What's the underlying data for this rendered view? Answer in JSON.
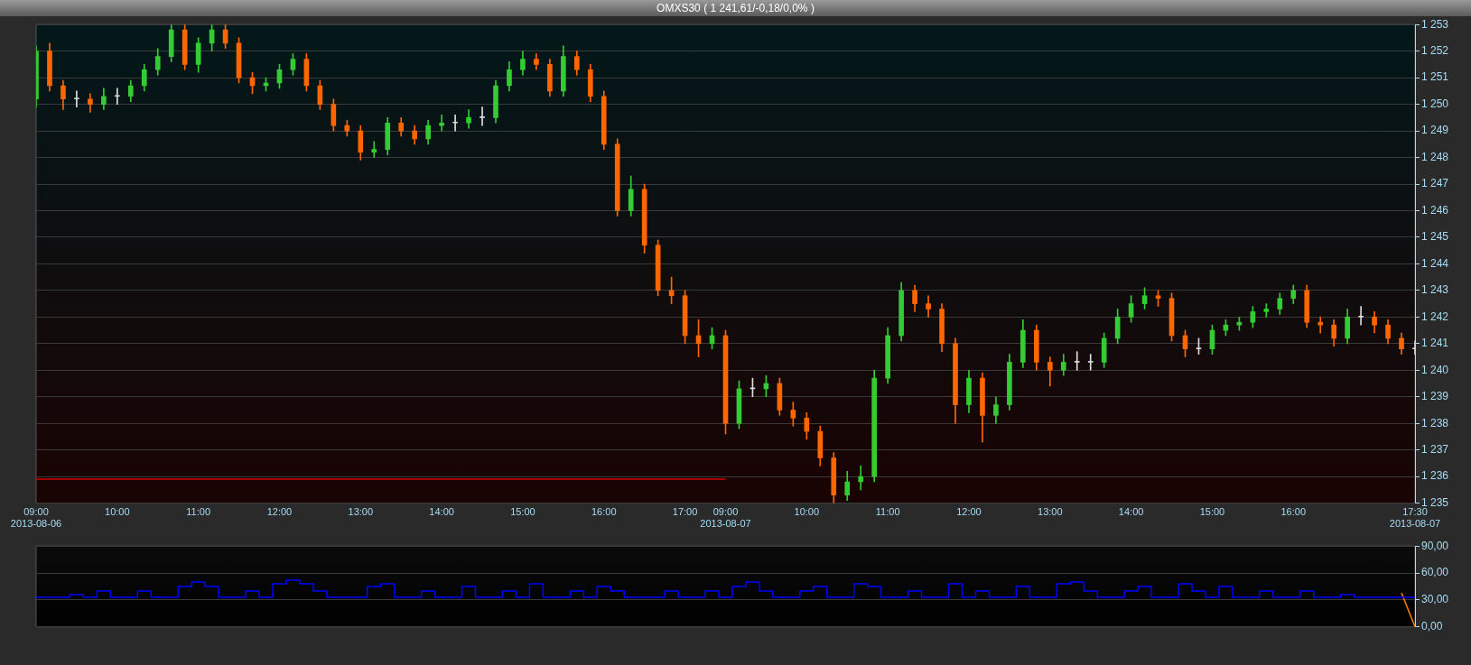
{
  "chart_data": [
    {
      "type": "candlestick",
      "title": "OMXS30 ( 1 241,61/-0,18/0,0% )",
      "categories": [
        "09:00\n2013-08-06",
        null,
        null,
        null,
        null,
        null,
        "10:00",
        null,
        null,
        null,
        null,
        null,
        "11:00",
        null,
        null,
        null,
        null,
        null,
        "12:00",
        null,
        null,
        null,
        null,
        null,
        "13:00",
        null,
        null,
        null,
        null,
        null,
        "14:00",
        null,
        null,
        null,
        null,
        null,
        "15:00",
        null,
        null,
        null,
        null,
        null,
        "16:00",
        null,
        null,
        null,
        null,
        null,
        "17:00",
        null,
        null,
        "09:00\n2013-08-07",
        null,
        null,
        null,
        null,
        null,
        "10:00",
        null,
        null,
        null,
        null,
        null,
        "11:00",
        null,
        null,
        null,
        null,
        null,
        "12:00",
        null,
        null,
        null,
        null,
        null,
        "13:00",
        null,
        null,
        null,
        null,
        null,
        "14:00",
        null,
        null,
        null,
        null,
        null,
        "15:00",
        null,
        null,
        null,
        null,
        null,
        "16:00",
        null,
        null,
        null,
        null,
        null,
        null,
        null,
        null,
        "17:30\n2013-08-07"
      ],
      "ohlc": [
        [
          1250.2,
          1252.2,
          1249.9,
          1252.0
        ],
        [
          1252.0,
          1252.3,
          1250.5,
          1250.7
        ],
        [
          1250.7,
          1250.9,
          1249.8,
          1250.2
        ],
        [
          1250.2,
          1250.5,
          1249.9,
          1250.2
        ],
        [
          1250.2,
          1250.4,
          1249.7,
          1250.0
        ],
        [
          1250.0,
          1250.6,
          1249.8,
          1250.3
        ],
        [
          1250.3,
          1250.6,
          1250.0,
          1250.3
        ],
        [
          1250.3,
          1250.9,
          1250.1,
          1250.7
        ],
        [
          1250.7,
          1251.5,
          1250.5,
          1251.3
        ],
        [
          1251.3,
          1252.1,
          1251.1,
          1251.8
        ],
        [
          1251.8,
          1253.0,
          1251.6,
          1252.8
        ],
        [
          1252.8,
          1253.0,
          1251.3,
          1251.5
        ],
        [
          1251.5,
          1252.5,
          1251.2,
          1252.3
        ],
        [
          1252.3,
          1253.0,
          1252.0,
          1252.8
        ],
        [
          1252.8,
          1253.0,
          1252.1,
          1252.3
        ],
        [
          1252.3,
          1252.5,
          1250.8,
          1251.0
        ],
        [
          1251.0,
          1251.2,
          1250.4,
          1250.7
        ],
        [
          1250.7,
          1251.0,
          1250.5,
          1250.8
        ],
        [
          1250.8,
          1251.5,
          1250.6,
          1251.3
        ],
        [
          1251.3,
          1251.9,
          1251.1,
          1251.7
        ],
        [
          1251.7,
          1251.9,
          1250.5,
          1250.7
        ],
        [
          1250.7,
          1250.9,
          1249.8,
          1250.0
        ],
        [
          1250.0,
          1250.2,
          1249.0,
          1249.2
        ],
        [
          1249.2,
          1249.4,
          1248.8,
          1249.0
        ],
        [
          1249.0,
          1249.2,
          1247.9,
          1248.2
        ],
        [
          1248.2,
          1248.6,
          1248.0,
          1248.3
        ],
        [
          1248.3,
          1249.5,
          1248.1,
          1249.3
        ],
        [
          1249.3,
          1249.5,
          1248.8,
          1249.0
        ],
        [
          1249.0,
          1249.2,
          1248.5,
          1248.7
        ],
        [
          1248.7,
          1249.4,
          1248.5,
          1249.2
        ],
        [
          1249.2,
          1249.6,
          1249.0,
          1249.3
        ],
        [
          1249.3,
          1249.6,
          1249.0,
          1249.3
        ],
        [
          1249.3,
          1249.8,
          1249.1,
          1249.5
        ],
        [
          1249.5,
          1249.9,
          1249.2,
          1249.5
        ],
        [
          1249.5,
          1250.9,
          1249.3,
          1250.7
        ],
        [
          1250.7,
          1251.6,
          1250.5,
          1251.3
        ],
        [
          1251.3,
          1252.0,
          1251.1,
          1251.7
        ],
        [
          1251.7,
          1251.9,
          1251.3,
          1251.5
        ],
        [
          1251.5,
          1251.7,
          1250.3,
          1250.5
        ],
        [
          1250.5,
          1252.2,
          1250.3,
          1251.8
        ],
        [
          1251.8,
          1252.0,
          1251.1,
          1251.3
        ],
        [
          1251.3,
          1251.5,
          1250.1,
          1250.3
        ],
        [
          1250.3,
          1250.5,
          1248.3,
          1248.5
        ],
        [
          1248.5,
          1248.7,
          1245.8,
          1246.0
        ],
        [
          1246.0,
          1247.3,
          1245.8,
          1246.8
        ],
        [
          1246.8,
          1247.0,
          1244.4,
          1244.7
        ],
        [
          1244.7,
          1244.9,
          1242.8,
          1243.0
        ],
        [
          1243.0,
          1243.5,
          1242.5,
          1242.8
        ],
        [
          1242.8,
          1243.0,
          1241.0,
          1241.3
        ],
        [
          1241.3,
          1241.9,
          1240.5,
          1241.0
        ],
        [
          1241.0,
          1241.6,
          1240.8,
          1241.3
        ],
        [
          1241.3,
          1241.5,
          1237.6,
          1238.0
        ],
        [
          1238.0,
          1239.6,
          1237.8,
          1239.3
        ],
        [
          1239.3,
          1239.7,
          1239.0,
          1239.3
        ],
        [
          1239.3,
          1239.8,
          1239.0,
          1239.5
        ],
        [
          1239.5,
          1239.7,
          1238.3,
          1238.5
        ],
        [
          1238.5,
          1238.8,
          1237.9,
          1238.2
        ],
        [
          1238.2,
          1238.4,
          1237.4,
          1237.7
        ],
        [
          1237.7,
          1237.9,
          1236.4,
          1236.7
        ],
        [
          1236.7,
          1236.9,
          1235.0,
          1235.3
        ],
        [
          1235.3,
          1236.2,
          1235.1,
          1235.8
        ],
        [
          1235.8,
          1236.4,
          1235.5,
          1236.0
        ],
        [
          1236.0,
          1240.0,
          1235.8,
          1239.7
        ],
        [
          1239.7,
          1241.6,
          1239.5,
          1241.3
        ],
        [
          1241.3,
          1243.3,
          1241.1,
          1243.0
        ],
        [
          1243.0,
          1243.2,
          1242.2,
          1242.5
        ],
        [
          1242.5,
          1242.8,
          1242.0,
          1242.3
        ],
        [
          1242.3,
          1242.5,
          1240.7,
          1241.0
        ],
        [
          1241.0,
          1241.2,
          1238.0,
          1238.7
        ],
        [
          1238.7,
          1240.0,
          1238.4,
          1239.7
        ],
        [
          1239.7,
          1239.9,
          1237.3,
          1238.3
        ],
        [
          1238.3,
          1239.0,
          1238.0,
          1238.7
        ],
        [
          1238.7,
          1240.6,
          1238.5,
          1240.3
        ],
        [
          1240.3,
          1241.9,
          1240.1,
          1241.5
        ],
        [
          1241.5,
          1241.7,
          1240.0,
          1240.3
        ],
        [
          1240.3,
          1240.5,
          1239.4,
          1240.0
        ],
        [
          1240.0,
          1240.6,
          1239.8,
          1240.3
        ],
        [
          1240.3,
          1240.7,
          1240.0,
          1240.3
        ],
        [
          1240.3,
          1240.6,
          1240.0,
          1240.3
        ],
        [
          1240.3,
          1241.4,
          1240.1,
          1241.2
        ],
        [
          1241.2,
          1242.3,
          1241.0,
          1242.0
        ],
        [
          1242.0,
          1242.8,
          1241.8,
          1242.5
        ],
        [
          1242.5,
          1243.1,
          1242.3,
          1242.8
        ],
        [
          1242.8,
          1243.0,
          1242.4,
          1242.7
        ],
        [
          1242.7,
          1242.9,
          1241.1,
          1241.3
        ],
        [
          1241.3,
          1241.5,
          1240.5,
          1240.8
        ],
        [
          1240.8,
          1241.2,
          1240.6,
          1240.8
        ],
        [
          1240.8,
          1241.7,
          1240.6,
          1241.5
        ],
        [
          1241.5,
          1241.9,
          1241.3,
          1241.7
        ],
        [
          1241.7,
          1242.0,
          1241.5,
          1241.8
        ],
        [
          1241.8,
          1242.4,
          1241.6,
          1242.2
        ],
        [
          1242.2,
          1242.5,
          1242.0,
          1242.3
        ],
        [
          1242.3,
          1242.9,
          1242.1,
          1242.7
        ],
        [
          1242.7,
          1243.2,
          1242.5,
          1243.0
        ],
        [
          1243.0,
          1243.2,
          1241.6,
          1241.8
        ],
        [
          1241.8,
          1242.0,
          1241.4,
          1241.7
        ],
        [
          1241.7,
          1241.9,
          1240.9,
          1241.2
        ],
        [
          1241.2,
          1242.3,
          1241.0,
          1242.0
        ],
        [
          1242.0,
          1242.4,
          1241.7,
          1242.0
        ],
        [
          1242.0,
          1242.2,
          1241.4,
          1241.7
        ],
        [
          1241.7,
          1241.9,
          1241.0,
          1241.2
        ],
        [
          1241.2,
          1241.4,
          1240.6,
          1240.8
        ],
        [
          1240.8,
          1241.1,
          1240.6,
          1240.8
        ]
      ],
      "colors": [
        "#33cc33",
        "#ff6600",
        "#ff6600",
        "#dddddd",
        "#ff6600",
        "#33cc33",
        "#dddddd",
        "#33cc33",
        "#33cc33",
        "#33cc33",
        "#33cc33",
        "#ff6600",
        "#33cc33",
        "#33cc33",
        "#ff6600",
        "#ff6600",
        "#ff6600",
        "#33cc33",
        "#33cc33",
        "#33cc33",
        "#ff6600",
        "#ff6600",
        "#ff6600",
        "#ff6600",
        "#ff6600",
        "#33cc33",
        "#33cc33",
        "#ff6600",
        "#ff6600",
        "#33cc33",
        "#33cc33",
        "#dddddd",
        "#33cc33",
        "#dddddd",
        "#33cc33",
        "#33cc33",
        "#33cc33",
        "#ff6600",
        "#ff6600",
        "#33cc33",
        "#ff6600",
        "#ff6600",
        "#ff6600",
        "#ff6600",
        "#33cc33",
        "#ff6600",
        "#ff6600",
        "#ff6600",
        "#ff6600",
        "#ff6600",
        "#33cc33",
        "#ff6600",
        "#33cc33",
        "#dddddd",
        "#33cc33",
        "#ff6600",
        "#ff6600",
        "#ff6600",
        "#ff6600",
        "#ff6600",
        "#33cc33",
        "#33cc33",
        "#33cc33",
        "#33cc33",
        "#33cc33",
        "#ff6600",
        "#ff6600",
        "#ff6600",
        "#ff6600",
        "#33cc33",
        "#ff6600",
        "#33cc33",
        "#33cc33",
        "#33cc33",
        "#ff6600",
        "#ff6600",
        "#33cc33",
        "#dddddd",
        "#dddddd",
        "#33cc33",
        "#33cc33",
        "#33cc33",
        "#33cc33",
        "#ff6600",
        "#ff6600",
        "#ff6600",
        "#dddddd",
        "#33cc33",
        "#33cc33",
        "#33cc33",
        "#33cc33",
        "#33cc33",
        "#33cc33",
        "#33cc33",
        "#ff6600",
        "#ff6600",
        "#ff6600",
        "#33cc33",
        "#dddddd",
        "#ff6600",
        "#ff6600",
        "#ff6600",
        "#dddddd"
      ],
      "series": [
        {
          "type": "line",
          "color": "#cc0000",
          "values": [
            1235.9,
            1235.9,
            1235.9,
            1235.9,
            1235.9,
            1235.9,
            1235.9,
            1235.9,
            1235.9,
            1235.9,
            1235.9,
            1235.9,
            1235.9,
            1235.9,
            1235.9,
            1235.9,
            1235.9,
            1235.9,
            1235.9,
            1235.9,
            1235.9,
            1235.9,
            1235.9,
            1235.9,
            1235.9,
            1235.9,
            1235.9,
            1235.9,
            1235.9,
            1235.9,
            1235.9,
            1235.9,
            1235.9,
            1235.9,
            1235.9,
            1235.9,
            1235.9,
            1235.9,
            1235.9,
            1235.9,
            1235.9,
            1235.9,
            1235.9,
            1235.9,
            1235.9,
            1235.9,
            1235.9,
            1235.9,
            1235.9,
            1235.9,
            1235.9,
            1235.9,
            null,
            null,
            null,
            null,
            null,
            null,
            null,
            null,
            null,
            null,
            null,
            null,
            null,
            null,
            null,
            null,
            null,
            null,
            null,
            null,
            null,
            null,
            null,
            null,
            null,
            null,
            null,
            null,
            null,
            null,
            null,
            null,
            null,
            null,
            null,
            null,
            null,
            null,
            null,
            null,
            null,
            null,
            null,
            null,
            null,
            null,
            null,
            null,
            null,
            null,
            null
          ]
        }
      ],
      "ylim": [
        1235,
        1253
      ],
      "yticks": [
        {
          "value": 1235,
          "label": "1 235"
        },
        {
          "value": 1236,
          "label": "1 236"
        },
        {
          "value": 1237,
          "label": "1 237"
        },
        {
          "value": 1238,
          "label": "1 238"
        },
        {
          "value": 1239,
          "label": "1 239"
        },
        {
          "value": 1240,
          "label": "1 240"
        },
        {
          "value": 1241,
          "label": "1 241"
        },
        {
          "value": 1242,
          "label": "1 242"
        },
        {
          "value": 1243,
          "label": "1 243"
        },
        {
          "value": 1244,
          "label": "1 244"
        },
        {
          "value": 1245,
          "label": "1 245"
        },
        {
          "value": 1246,
          "label": "1 246"
        },
        {
          "value": 1247,
          "label": "1 247"
        },
        {
          "value": 1248,
          "label": "1 248"
        },
        {
          "value": 1249,
          "label": "1 249"
        },
        {
          "value": 1250,
          "label": "1 250"
        },
        {
          "value": 1251,
          "label": "1 251"
        },
        {
          "value": 1252,
          "label": "1 252"
        },
        {
          "value": 1253,
          "label": "1 253"
        }
      ],
      "grid": "y"
    },
    {
      "type": "step",
      "categories": [
        null,
        null,
        null,
        null,
        null,
        null,
        null,
        null,
        null,
        null,
        null,
        null,
        null,
        null,
        null,
        null,
        null,
        null,
        null,
        null,
        null,
        null,
        null,
        null,
        null,
        null,
        null,
        null,
        null,
        null,
        null,
        null,
        null,
        null,
        null,
        null,
        null,
        null,
        null,
        null,
        null,
        null,
        null,
        null,
        null,
        null,
        null,
        null,
        null,
        null,
        null,
        null,
        null,
        null,
        null,
        null,
        null,
        null,
        null,
        null,
        null,
        null,
        null,
        null,
        null,
        null,
        null,
        null,
        null,
        null,
        null,
        null,
        null,
        null,
        null,
        null,
        null,
        null,
        null,
        null,
        null,
        null,
        null,
        null,
        null,
        null,
        null,
        null,
        null,
        null,
        null,
        null,
        null,
        null,
        null,
        null,
        null,
        null,
        null,
        null,
        null,
        null,
        null
      ],
      "series": [
        {
          "color": "#0000ff",
          "values": [
            33,
            33,
            33,
            36,
            33,
            40,
            33,
            33,
            40,
            33,
            33,
            45,
            50,
            45,
            33,
            33,
            40,
            33,
            48,
            52,
            48,
            40,
            33,
            33,
            33,
            45,
            48,
            33,
            33,
            40,
            33,
            33,
            45,
            33,
            33,
            40,
            33,
            48,
            33,
            33,
            40,
            33,
            45,
            40,
            33,
            33,
            33,
            40,
            33,
            33,
            40,
            33,
            45,
            50,
            40,
            33,
            33,
            40,
            45,
            33,
            33,
            48,
            45,
            33,
            33,
            40,
            33,
            33,
            48,
            33,
            40,
            33,
            33,
            45,
            33,
            33,
            48,
            50,
            40,
            33,
            33,
            40,
            45,
            33,
            33,
            48,
            40,
            33,
            45,
            33,
            33,
            40,
            33,
            33,
            40,
            33,
            33,
            36,
            33,
            33,
            33,
            33,
            33
          ]
        },
        {
          "type": "line",
          "color": "#ff8000",
          "values": [
            null,
            null,
            null,
            null,
            null,
            null,
            null,
            null,
            null,
            null,
            null,
            null,
            null,
            null,
            null,
            null,
            null,
            null,
            null,
            null,
            null,
            null,
            null,
            null,
            null,
            null,
            null,
            null,
            null,
            null,
            null,
            null,
            null,
            null,
            null,
            null,
            null,
            null,
            null,
            null,
            null,
            null,
            null,
            null,
            null,
            null,
            null,
            null,
            null,
            null,
            null,
            null,
            null,
            null,
            null,
            null,
            null,
            null,
            null,
            null,
            null,
            null,
            null,
            null,
            null,
            null,
            null,
            null,
            null,
            null,
            null,
            null,
            null,
            null,
            null,
            null,
            null,
            null,
            null,
            null,
            null,
            null,
            null,
            null,
            null,
            null,
            null,
            null,
            null,
            null,
            null,
            null,
            null,
            null,
            null,
            null,
            null,
            null,
            null,
            null,
            null,
            38,
            0
          ]
        }
      ],
      "ylim": [
        0,
        90
      ],
      "yticks": [
        {
          "value": 0,
          "label": "0,00"
        },
        {
          "value": 30,
          "label": "30,00"
        },
        {
          "value": 60,
          "label": "60,00"
        },
        {
          "value": 90,
          "label": "90,00"
        }
      ],
      "grid": "y",
      "tick_labels": "y"
    }
  ]
}
